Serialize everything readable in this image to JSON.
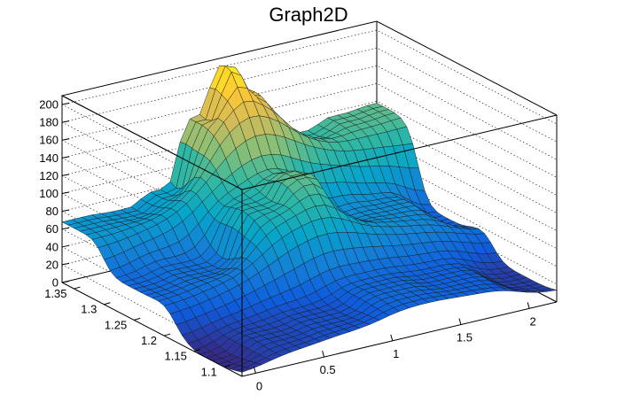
{
  "chart_data": {
    "type": "surface",
    "title": "Graph2D",
    "xlabel": "",
    "ylabel": "",
    "zlabel": "",
    "xlim": [
      -0.1,
      2.2
    ],
    "ylim": [
      1.07,
      1.37
    ],
    "zlim": [
      0,
      210
    ],
    "x_ticks": [
      0,
      0.5,
      1,
      1.5,
      2
    ],
    "x_tick_labels": [
      "0",
      "0.5",
      "1",
      "1.5",
      "2"
    ],
    "y_ticks": [
      1.1,
      1.15,
      1.2,
      1.25,
      1.3,
      1.35
    ],
    "y_tick_labels": [
      "1.1",
      "1.15",
      "1.2",
      "1.25",
      "1.3",
      "1.35"
    ],
    "z_ticks": [
      0,
      20,
      40,
      60,
      80,
      100,
      120,
      140,
      160,
      180,
      200
    ],
    "z_tick_labels": [
      "0",
      "20",
      "40",
      "60",
      "80",
      "100",
      "120",
      "140",
      "160",
      "180",
      "200"
    ],
    "colormap": [
      "#352a87",
      "#0f5cdd",
      "#1481d6",
      "#06a4ca",
      "#2eb7a4",
      "#87bf77",
      "#d1bb59",
      "#fec832",
      "#f9fb0e"
    ],
    "grid": true,
    "surface_points": [
      {
        "x": -0.1,
        "y": 1.36,
        "z": 68
      },
      {
        "x": 0.35,
        "y": 1.36,
        "z": 66
      },
      {
        "x": 0.6,
        "y": 1.36,
        "z": 78
      },
      {
        "x": 0.9,
        "y": 1.36,
        "z": 150
      },
      {
        "x": 1.05,
        "y": 1.36,
        "z": 205
      },
      {
        "x": 1.25,
        "y": 1.36,
        "z": 168
      },
      {
        "x": 1.45,
        "y": 1.36,
        "z": 120
      },
      {
        "x": 1.65,
        "y": 1.36,
        "z": 105
      },
      {
        "x": 1.9,
        "y": 1.36,
        "z": 115
      },
      {
        "x": 2.2,
        "y": 1.36,
        "z": 118
      },
      {
        "x": -0.1,
        "y": 1.25,
        "z": 35
      },
      {
        "x": 0.4,
        "y": 1.25,
        "z": 40
      },
      {
        "x": 0.8,
        "y": 1.25,
        "z": 95
      },
      {
        "x": 1.1,
        "y": 1.25,
        "z": 120
      },
      {
        "x": 1.4,
        "y": 1.25,
        "z": 60
      },
      {
        "x": 1.8,
        "y": 1.25,
        "z": 60
      },
      {
        "x": 2.2,
        "y": 1.25,
        "z": 30
      },
      {
        "x": -0.1,
        "y": 1.12,
        "z": 0
      },
      {
        "x": 0.3,
        "y": 1.12,
        "z": 15
      },
      {
        "x": 0.7,
        "y": 1.12,
        "z": 20
      },
      {
        "x": 1.2,
        "y": 1.12,
        "z": 35
      },
      {
        "x": 1.6,
        "y": 1.12,
        "z": 30
      },
      {
        "x": 2.2,
        "y": 1.12,
        "z": 10
      }
    ]
  }
}
